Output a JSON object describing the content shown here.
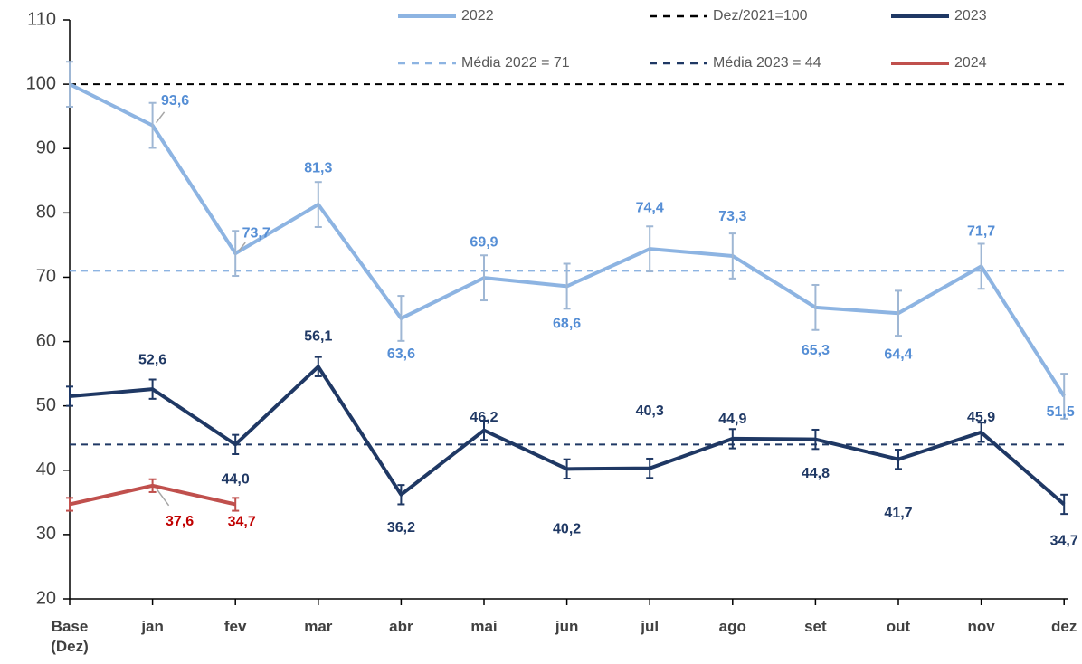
{
  "chart_data": {
    "type": "line",
    "categories": [
      "Base (Dez)",
      "jan",
      "fev",
      "mar",
      "abr",
      "mai",
      "jun",
      "jul",
      "ago",
      "set",
      "out",
      "nov",
      "dez"
    ],
    "ylim": [
      20,
      110
    ],
    "yticks": [
      20,
      30,
      40,
      50,
      60,
      70,
      80,
      90,
      100,
      110
    ],
    "series": [
      {
        "name": "2022",
        "color": "#8db4e2",
        "label_color": "#558ed5",
        "values": [
          100,
          93.6,
          73.7,
          81.3,
          63.6,
          69.9,
          68.6,
          74.4,
          73.3,
          65.3,
          64.4,
          71.7,
          51.5
        ],
        "value_labels": [
          null,
          "93,6",
          "73,7",
          "81,3",
          "63,6",
          "69,9",
          "68,6",
          "74,4",
          "73,3",
          "65,3",
          "64,4",
          "71,7",
          "51,5"
        ],
        "errors": [
          3.5,
          3.5,
          3.5,
          3.5,
          3.5,
          3.5,
          3.5,
          3.5,
          3.5,
          3.5,
          3.5,
          3.5,
          3.5
        ]
      },
      {
        "name": "2023",
        "color": "#1f3864",
        "label_color": "#1f3864",
        "values": [
          51.5,
          52.6,
          44.0,
          56.1,
          36.2,
          46.2,
          40.2,
          40.3,
          44.9,
          44.8,
          41.7,
          45.9,
          34.7
        ],
        "value_labels": [
          null,
          "52,6",
          "44,0",
          "56,1",
          "36,2",
          "46,2",
          "40,2",
          "40,3",
          "44,9",
          "44,8",
          "41,7",
          "45,9",
          "34,7"
        ],
        "errors": [
          1.5,
          1.5,
          1.5,
          1.5,
          1.5,
          1.5,
          1.5,
          1.5,
          1.5,
          1.5,
          1.5,
          1.5,
          1.5
        ]
      },
      {
        "name": "2024",
        "color": "#c0504d",
        "label_color": "#c00000",
        "values": [
          34.7,
          37.6,
          34.7,
          null,
          null,
          null,
          null,
          null,
          null,
          null,
          null,
          null,
          null
        ],
        "value_labels": [
          null,
          "37,6",
          "34,7",
          null,
          null,
          null,
          null,
          null,
          null,
          null,
          null,
          null,
          null
        ],
        "errors": [
          1,
          1,
          1,
          null,
          null,
          null,
          null,
          null,
          null,
          null,
          null,
          null,
          null
        ]
      }
    ],
    "reference_lines": [
      {
        "name": "Dez/2021=100",
        "value": 100,
        "color": "#000000"
      },
      {
        "name": "Média 2022 = 71",
        "value": 71,
        "color": "#8db4e2"
      },
      {
        "name": "Média 2023 = 44",
        "value": 44,
        "color": "#1f3864"
      }
    ]
  }
}
